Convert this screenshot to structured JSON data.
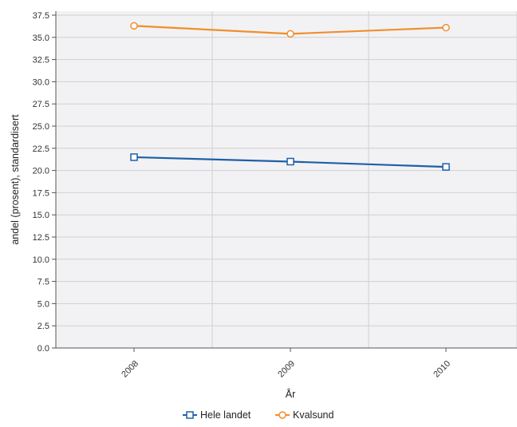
{
  "chart_data": {
    "type": "line",
    "title": "",
    "xlabel": "År",
    "ylabel": "andel (prosent), standardisert",
    "categories": [
      "2008",
      "2009",
      "2010"
    ],
    "yticks": [
      "0.0",
      "2.5",
      "5.0",
      "7.5",
      "10.0",
      "12.5",
      "15.0",
      "17.5",
      "20.0",
      "22.5",
      "25.0",
      "27.5",
      "30.0",
      "32.5",
      "35.0",
      "37.5"
    ],
    "ylim": [
      0,
      37.5
    ],
    "grid": true,
    "legend_position": "bottom",
    "series": [
      {
        "name": "Hele landet",
        "values": [
          21.5,
          21.0,
          20.4
        ],
        "color": "#1f5fa8",
        "marker": "square"
      },
      {
        "name": "Kvalsund",
        "values": [
          36.3,
          35.4,
          36.1
        ],
        "color": "#f28e2b",
        "marker": "circle"
      }
    ],
    "plot_background": "#f2f2f4",
    "grid_color": "#d0d0d4"
  }
}
